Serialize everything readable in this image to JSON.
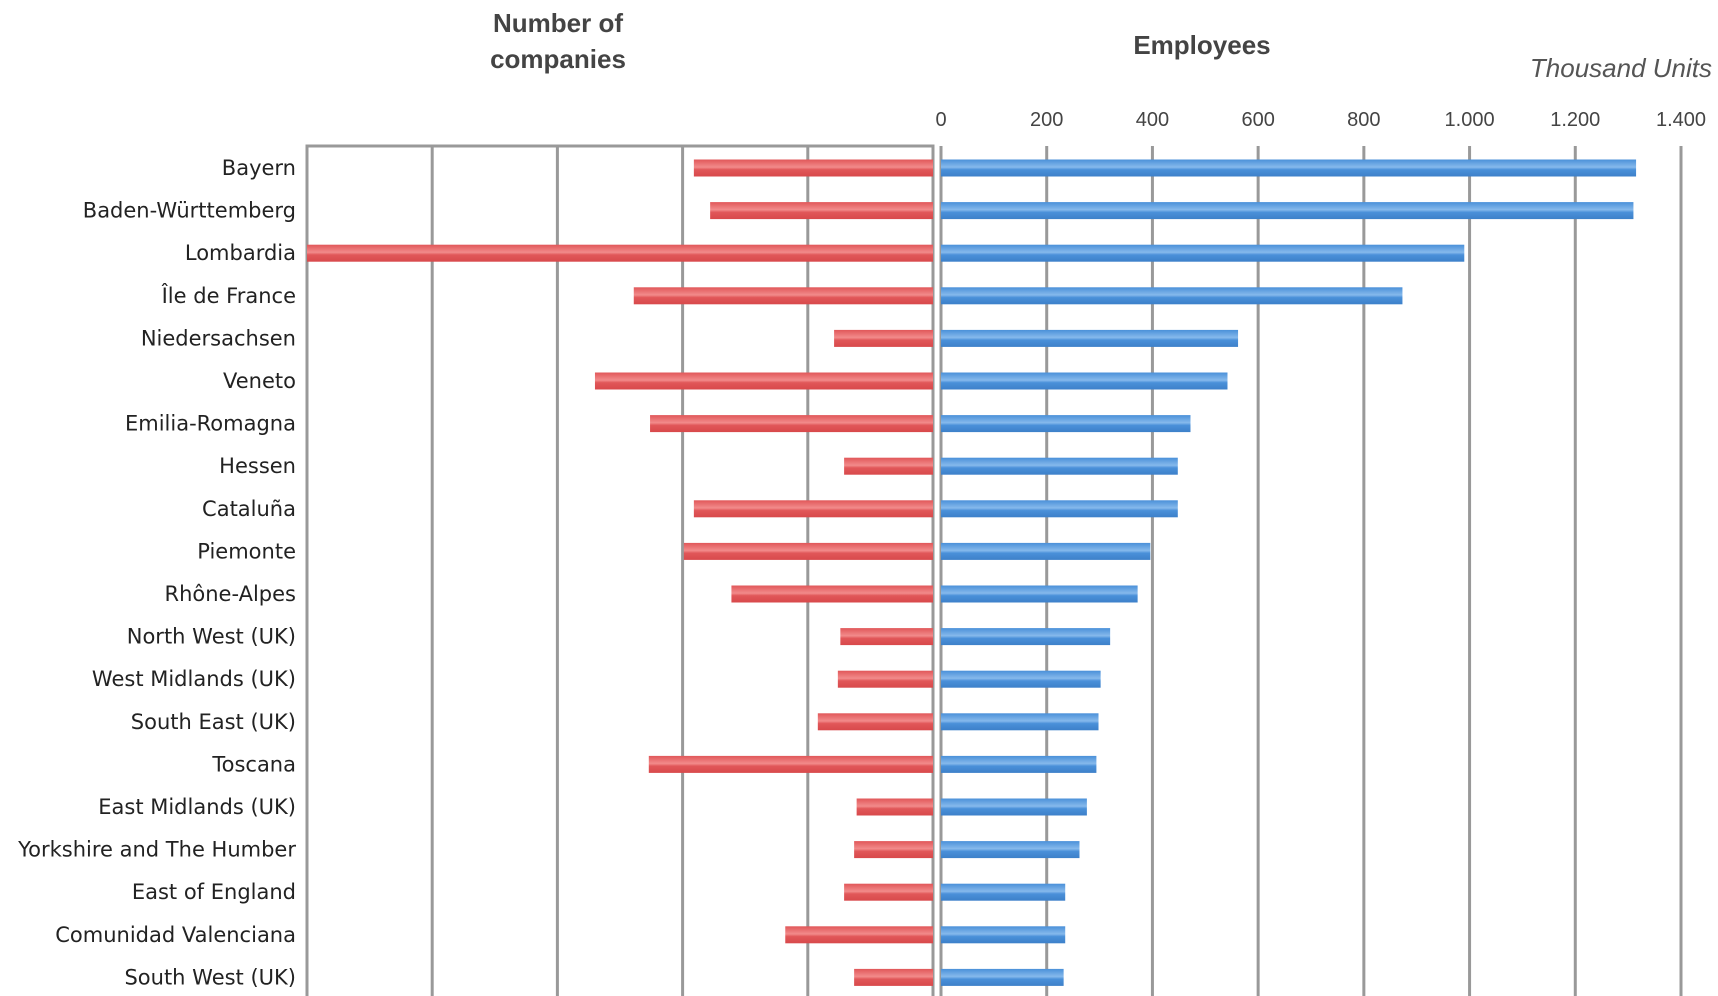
{
  "chart_data": {
    "type": "bar",
    "orientation": "horizontal",
    "left_panel": {
      "title_line1": "Number of",
      "title_line2": "companies",
      "color": "#e15759"
    },
    "right_panel": {
      "title": "Employees",
      "unit": "Thousand Units",
      "xlim": [
        0,
        1400
      ],
      "ticks": [
        {
          "value": 0,
          "label": "0"
        },
        {
          "value": 200,
          "label": "200"
        },
        {
          "value": 400,
          "label": "400"
        },
        {
          "value": 600,
          "label": "600"
        },
        {
          "value": 800,
          "label": "800"
        },
        {
          "value": 1000,
          "label": "1.000"
        },
        {
          "value": 1200,
          "label": "1.200"
        },
        {
          "value": 1400,
          "label": "1.400"
        }
      ],
      "color": "#4a90d9"
    },
    "categories": [
      "Bayern",
      "Baden-Württemberg",
      "Lombardia",
      "Île de France",
      "Niedersachsen",
      "Veneto",
      "Emilia-Romagna",
      "Hessen",
      "Cataluña",
      "Piemonte",
      "Rhône-Alpes",
      "North West (UK)",
      "West Midlands (UK)",
      "South East (UK)",
      "Toscana",
      "East Midlands (UK)",
      "Yorkshire and The Humber",
      "East of England",
      "Comunidad Valenciana",
      "South West (UK)"
    ],
    "series": [
      {
        "values": [
          1.91,
          1.78,
          5.0,
          2.39,
          0.79,
          2.7,
          2.26,
          0.71,
          1.91,
          1.99,
          1.61,
          0.74,
          0.76,
          0.92,
          2.27,
          0.61,
          0.63,
          0.71,
          1.18,
          0.63
        ]
      },
      {
        "values": [
          1315,
          1310,
          990,
          873,
          562,
          542,
          472,
          448,
          448,
          396,
          372,
          320,
          302,
          298,
          294,
          276,
          262,
          235,
          235,
          232
        ]
      }
    ],
    "grid": true
  }
}
